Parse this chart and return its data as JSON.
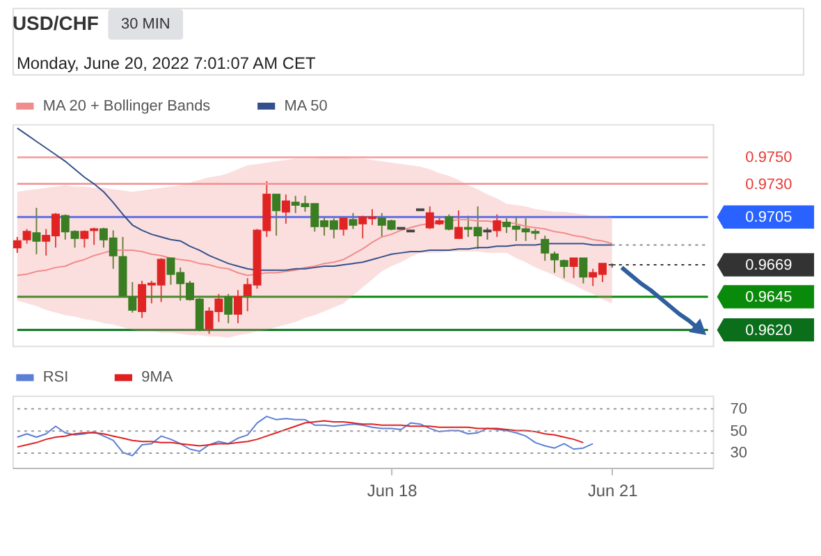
{
  "chart_data": [
    {
      "type": "candlestick",
      "title": "USD/CHF",
      "subtitle": "Monday, June 20, 2022 7:01:07 AM CET",
      "annotations": [
        "30 MIN"
      ],
      "categories": [
        null,
        null,
        null,
        null,
        null,
        null,
        null,
        null,
        null,
        null,
        null,
        null,
        null,
        null,
        null,
        null,
        null,
        null,
        null,
        null,
        null,
        null,
        null,
        null,
        null,
        null,
        null,
        null,
        null,
        null,
        null,
        null,
        null,
        null,
        null,
        null,
        null,
        null,
        null,
        null,
        null,
        null,
        null,
        null,
        null,
        null,
        null,
        null,
        null,
        null,
        null,
        null,
        null,
        null,
        null,
        null,
        null,
        null,
        null,
        null,
        null,
        null,
        null,
        null,
        null,
        null,
        null,
        null,
        null,
        null,
        null,
        null,
        null
      ],
      "ohlc": [
        [
          0.9682,
          0.969,
          0.9678,
          0.9687
        ],
        [
          0.9688,
          0.9696,
          0.9685,
          0.9694
        ],
        [
          0.9693,
          0.9712,
          0.9677,
          0.9687
        ],
        [
          0.9687,
          0.9696,
          0.9676,
          0.9691
        ],
        [
          0.9691,
          0.9708,
          0.9682,
          0.9707
        ],
        [
          0.9706,
          0.9707,
          0.9688,
          0.9694
        ],
        [
          0.9694,
          0.9695,
          0.9682,
          0.9689
        ],
        [
          0.9689,
          0.9695,
          0.9682,
          0.9694
        ],
        [
          0.9695,
          0.9697,
          0.9684,
          0.9696
        ],
        [
          0.9696,
          0.9697,
          0.9682,
          0.9688
        ],
        [
          0.9689,
          0.9695,
          0.9666,
          0.9676
        ],
        [
          0.9675,
          0.969,
          0.9645,
          0.9646
        ],
        [
          0.9645,
          0.9656,
          0.9633,
          0.9635
        ],
        [
          0.9634,
          0.9657,
          0.9629,
          0.9654
        ],
        [
          0.9654,
          0.9657,
          0.964,
          0.9655
        ],
        [
          0.9654,
          0.9674,
          0.9641,
          0.9673
        ],
        [
          0.9674,
          0.9674,
          0.9654,
          0.9662
        ],
        [
          0.9663,
          0.9667,
          0.9642,
          0.9655
        ],
        [
          0.9655,
          0.9657,
          0.9642,
          0.9643
        ],
        [
          0.9643,
          0.9644,
          0.9619,
          0.962
        ],
        [
          0.9621,
          0.9637,
          0.9617,
          0.9634
        ],
        [
          0.9634,
          0.9647,
          0.9626,
          0.9643
        ],
        [
          0.9645,
          0.9647,
          0.9625,
          0.9632
        ],
        [
          0.9632,
          0.965,
          0.9625,
          0.9645
        ],
        [
          0.9646,
          0.9659,
          0.9634,
          0.9654
        ],
        [
          0.9654,
          0.9696,
          0.9651,
          0.9695
        ],
        [
          0.9695,
          0.9732,
          0.969,
          0.9722
        ],
        [
          0.9722,
          0.9722,
          0.9691,
          0.971
        ],
        [
          0.9709,
          0.9722,
          0.97,
          0.9717
        ],
        [
          0.9716,
          0.9721,
          0.9708,
          0.9714
        ],
        [
          0.9715,
          0.9721,
          0.9709,
          0.9713
        ],
        [
          0.9715,
          0.9715,
          0.9694,
          0.9698
        ],
        [
          0.9702,
          0.9705,
          0.9691,
          0.9698
        ],
        [
          0.9702,
          0.9704,
          0.9689,
          0.9696
        ],
        [
          0.9696,
          0.9705,
          0.9691,
          0.9704
        ],
        [
          0.9703,
          0.9708,
          0.9696,
          0.9699
        ],
        [
          0.97,
          0.9706,
          0.9689,
          0.9705
        ],
        [
          0.9704,
          0.9711,
          0.9699,
          0.9705
        ],
        [
          0.9704,
          0.9708,
          0.969,
          0.9699
        ],
        [
          0.9702,
          0.9703,
          0.9695,
          0.9696
        ],
        [
          0.9697,
          0.9697,
          0.9696,
          0.9696
        ],
        [
          0.9695,
          0.9695,
          0.9694,
          0.9694
        ],
        [
          0.9711,
          0.9711,
          0.971,
          0.971
        ],
        [
          0.9697,
          0.9713,
          0.9696,
          0.9708
        ],
        [
          0.97,
          0.9705,
          0.9699,
          0.9702
        ],
        [
          0.9705,
          0.9707,
          0.9695,
          0.9696
        ],
        [
          0.9689,
          0.971,
          0.9689,
          0.9697
        ],
        [
          0.9697,
          0.9706,
          0.969,
          0.9696
        ],
        [
          0.9697,
          0.9713,
          0.9681,
          0.9691
        ],
        [
          0.9695,
          0.9697,
          0.9688,
          0.9694
        ],
        [
          0.9695,
          0.9707,
          0.969,
          0.9702
        ],
        [
          0.9701,
          0.9704,
          0.9693,
          0.9698
        ],
        [
          0.9698,
          0.9705,
          0.9687,
          0.9696
        ],
        [
          0.9696,
          0.9704,
          0.9687,
          0.9694
        ],
        [
          0.9694,
          0.9696,
          0.9688,
          0.9693
        ],
        [
          0.9688,
          0.9691,
          0.9672,
          0.9678
        ],
        [
          0.9677,
          0.9679,
          0.9663,
          0.9673
        ],
        [
          0.9672,
          0.9673,
          0.9659,
          0.9668
        ],
        [
          0.9668,
          0.9674,
          0.9659,
          0.9674
        ],
        [
          0.9674,
          0.9674,
          0.9655,
          0.966
        ],
        [
          0.966,
          0.9666,
          0.9653,
          0.9663
        ],
        [
          0.9662,
          0.967,
          0.9656,
          0.967
        ],
        [
          0.9669,
          0.967,
          0.9667,
          0.9669
        ],
        null,
        null,
        null,
        null,
        null,
        null,
        null,
        null,
        null,
        null
      ],
      "colors": [
        "#e02424",
        "#e02424",
        "#3a7d22",
        "#e02424",
        "#e02424",
        "#3a7d22",
        "#3a7d22",
        "#e02424",
        "#e02424",
        "#3a7d22",
        "#3a7d22",
        "#3a7d22",
        "#3a7d22",
        "#e02424",
        "#e02424",
        "#e02424",
        "#3a7d22",
        "#3a7d22",
        "#3a7d22",
        "#3a7d22",
        "#e02424",
        "#e02424",
        "#3a7d22",
        "#e02424",
        "#e02424",
        "#e02424",
        "#e02424",
        "#3a7d22",
        "#e02424",
        "#3a7d22",
        "#3a7d22",
        "#3a7d22",
        "#3a7d22",
        "#3a7d22",
        "#e02424",
        "#3a7d22",
        "#e02424",
        "#e02424",
        "#3a7d22",
        "#3a7d22",
        "#444444",
        "#444444",
        "#444444",
        "#e02424",
        "#e02424",
        "#3a7d22",
        "#e02424",
        "#3a7d22",
        "#3a7d22",
        "#444444",
        "#e02424",
        "#3a7d22",
        "#3a7d22",
        "#3a7d22",
        "#3a7d22",
        "#3a7d22",
        "#3a7d22",
        "#3a7d22",
        "#e02424",
        "#3a7d22",
        "#e02424",
        "#e02424",
        "#444444",
        null,
        null,
        null,
        null,
        null,
        null,
        null,
        null,
        null,
        null
      ],
      "ylim": [
        0.9608,
        0.9775
      ],
      "yticks": [
        {
          "value": 0.975,
          "label": "0.9750"
        },
        {
          "value": 0.973,
          "label": "0.9730"
        },
        0.9705,
        0.9669,
        0.9645,
        {
          "value": 0.962,
          "label": "0.9620"
        }
      ],
      "tick_labels": "y",
      "legend": "top left",
      "series": [
        {
          "name": "MA 20 + Bollinger Bands",
          "type": "line",
          "color": "#f08c8c",
          "values": [
            0.9661,
            0.9662,
            0.9664,
            0.9665,
            0.9667,
            0.9668,
            0.9671,
            0.9673,
            0.9676,
            0.9678,
            0.968,
            0.968,
            0.968,
            0.9679,
            0.9677,
            0.9676,
            0.9674,
            0.9673,
            0.9672,
            0.967,
            0.9669,
            0.9667,
            0.9666,
            0.9663,
            0.9661,
            0.9662,
            0.9663,
            0.9663,
            0.9664,
            0.9665,
            0.9667,
            0.9668,
            0.967,
            0.9671,
            0.9673,
            0.9677,
            0.9681,
            0.9686,
            0.969,
            0.9692,
            0.9695,
            0.9697,
            0.9699,
            0.97,
            0.9701,
            0.9702,
            0.9703,
            0.9703,
            0.9702,
            0.9702,
            0.9701,
            0.9701,
            0.97,
            0.9698,
            0.9697,
            0.9696,
            0.9694,
            0.9693,
            0.9691,
            0.969,
            0.9688,
            0.9687,
            0.9685,
            null,
            null,
            null,
            null,
            null,
            null,
            null,
            null,
            null,
            null
          ],
          "upper": [
            0.9724,
            0.9725,
            0.9726,
            0.9727,
            0.9728,
            0.9729,
            0.9728,
            0.9728,
            0.9727,
            0.9727,
            0.9726,
            0.9725,
            0.9724,
            0.9725,
            0.9726,
            0.9727,
            0.9728,
            0.9729,
            0.9731,
            0.9733,
            0.9735,
            0.9736,
            0.9738,
            0.9741,
            0.9744,
            0.9745,
            0.9746,
            0.9747,
            0.9748,
            0.9749,
            0.9749,
            0.9749,
            0.975,
            0.975,
            0.975,
            0.9749,
            0.9749,
            0.9748,
            0.9747,
            0.9746,
            0.9745,
            0.9744,
            0.9743,
            0.9741,
            0.9738,
            0.9736,
            0.9733,
            0.9729,
            0.9726,
            0.9722,
            0.9719,
            0.9715,
            0.9714,
            0.9713,
            0.9711,
            0.971,
            0.9709,
            0.9709,
            0.9708,
            0.9707,
            0.9706,
            0.9706,
            0.9705,
            null,
            null,
            null,
            null,
            null,
            null,
            null,
            null,
            null,
            null
          ],
          "lower": [
            0.9642,
            0.964,
            0.9638,
            0.9635,
            0.9633,
            0.9631,
            0.963,
            0.9628,
            0.9627,
            0.9625,
            0.9624,
            0.9622,
            0.962,
            0.9619,
            0.9619,
            0.9618,
            0.9618,
            0.9617,
            0.9616,
            0.9616,
            0.9615,
            0.9615,
            0.9614,
            0.9616,
            0.9617,
            0.9619,
            0.962,
            0.9622,
            0.9624,
            0.9626,
            0.9629,
            0.9631,
            0.9634,
            0.9637,
            0.964,
            0.9646,
            0.9652,
            0.9658,
            0.9664,
            0.9668,
            0.9671,
            0.9675,
            0.9678,
            0.9678,
            0.9678,
            0.9679,
            0.9679,
            0.9679,
            0.9679,
            0.9678,
            0.9678,
            0.9678,
            0.9674,
            0.9671,
            0.9667,
            0.9664,
            0.9661,
            0.9657,
            0.9654,
            0.965,
            0.9647,
            0.9643,
            0.964,
            null,
            null,
            null,
            null,
            null,
            null,
            null,
            null,
            null,
            null
          ]
        },
        {
          "name": "MA 50",
          "type": "line",
          "color": "#34508a",
          "values": [
            0.9772,
            0.9767,
            0.9762,
            0.9757,
            0.9752,
            0.9747,
            0.9741,
            0.9735,
            0.973,
            0.9724,
            0.9716,
            0.9707,
            0.9699,
            0.9695,
            0.9692,
            0.969,
            0.9688,
            0.9687,
            0.9683,
            0.968,
            0.9676,
            0.9673,
            0.967,
            0.9668,
            0.9666,
            0.9665,
            0.9665,
            0.9665,
            0.9665,
            0.9666,
            0.9666,
            0.9667,
            0.9668,
            0.9668,
            0.9669,
            0.967,
            0.9671,
            0.9673,
            0.9675,
            0.9677,
            0.9678,
            0.9679,
            0.9679,
            0.968,
            0.968,
            0.968,
            0.9681,
            0.9681,
            0.9682,
            0.9682,
            0.9683,
            0.9683,
            0.9684,
            0.9684,
            0.9684,
            0.9685,
            0.9685,
            0.9685,
            0.9685,
            0.9685,
            0.9684,
            0.9684,
            0.9684,
            null,
            null,
            null,
            null,
            null,
            null,
            null,
            null,
            null,
            null
          ]
        },
        {
          "type": "line",
          "color": "#2f5f9e",
          "values": [
            null,
            null,
            null,
            null,
            null,
            null,
            null,
            null,
            null,
            null,
            null,
            null,
            null,
            null,
            null,
            null,
            null,
            null,
            null,
            null,
            null,
            null,
            null,
            null,
            null,
            null,
            null,
            null,
            null,
            null,
            null,
            null,
            null,
            null,
            null,
            null,
            null,
            null,
            null,
            null,
            null,
            null,
            null,
            null,
            null,
            null,
            null,
            null,
            null,
            null,
            null,
            null,
            null,
            null,
            null,
            null,
            null,
            null,
            null,
            null,
            null,
            null,
            null,
            0.9667,
            0.9661,
            0.9655,
            0.965,
            0.9644,
            0.9638,
            0.9632,
            0.9627,
            0.9621,
            null
          ]
        }
      ],
      "ref_lines": [
        {
          "axis": "y",
          "value": 0.975,
          "color": "#f4a0a0"
        },
        {
          "axis": "y",
          "value": 0.973,
          "color": "#f4a0a0"
        },
        {
          "axis": "y",
          "value": 0.9705,
          "color": "#2962ff"
        },
        {
          "axis": "y",
          "value": 0.9684,
          "color": "#888888",
          "line_style": "dotted"
        },
        {
          "axis": "y",
          "value": 0.9669,
          "color": "#333333",
          "line_style": "dotted"
        },
        {
          "axis": "y",
          "value": 0.9645,
          "color": "#0a8a0a"
        },
        {
          "axis": "y",
          "value": 0.962,
          "color": "#0a6e1a"
        }
      ]
    },
    {
      "type": "line",
      "categories": [
        null,
        null,
        null,
        null,
        null,
        null,
        null,
        null,
        null,
        null,
        null,
        null,
        null,
        null,
        null,
        null,
        null,
        null,
        null,
        null,
        null,
        null,
        null,
        null,
        null,
        null,
        null,
        null,
        null,
        null,
        null,
        null,
        null,
        null,
        null,
        null,
        null,
        null,
        null,
        "Jun 18",
        null,
        null,
        null,
        null,
        null,
        null,
        null,
        null,
        null,
        null,
        null,
        null,
        null,
        null,
        null,
        null,
        null,
        null,
        null,
        null,
        null,
        null,
        "Jun 21",
        null,
        null,
        null,
        null,
        null,
        null,
        null,
        null,
        null,
        null
      ],
      "ylim": [
        16,
        82
      ],
      "yticks": [
        30,
        50,
        70
      ],
      "grid": "y",
      "legend": "top left",
      "series": [
        {
          "name": "RSI",
          "color": "#5b7fd6",
          "values": [
            44,
            47,
            44,
            47,
            54,
            48,
            46,
            47,
            49,
            45,
            41,
            30,
            27,
            37,
            38,
            45,
            42,
            38,
            33,
            31,
            37,
            40,
            38,
            43,
            46,
            57,
            63,
            60,
            61,
            60,
            60,
            55,
            55,
            54,
            55,
            56,
            55,
            53,
            52,
            52,
            51,
            57,
            56,
            52,
            49,
            50,
            50,
            47,
            48,
            52,
            51,
            50,
            48,
            45,
            39,
            36,
            34,
            38,
            33,
            34,
            38,
            null,
            null,
            null,
            null,
            null,
            null,
            null,
            null,
            null,
            null,
            null,
            null
          ]
        },
        {
          "name": "9MA",
          "color": "#e02020",
          "values": [
            35,
            37,
            39,
            42,
            44,
            45,
            47,
            48,
            48,
            47,
            45,
            43,
            41,
            40,
            40,
            39,
            39,
            38,
            37,
            36,
            37,
            38,
            38,
            39,
            40,
            42,
            45,
            48,
            51,
            54,
            57,
            58,
            59,
            58,
            58,
            57,
            56,
            56,
            55,
            55,
            55,
            54,
            54,
            54,
            53,
            53,
            53,
            53,
            52,
            52,
            52,
            51,
            50,
            50,
            49,
            47,
            46,
            44,
            42,
            39,
            null,
            null,
            null,
            null,
            null,
            null,
            null,
            null,
            null,
            null,
            null,
            null,
            null
          ]
        }
      ]
    }
  ]
}
